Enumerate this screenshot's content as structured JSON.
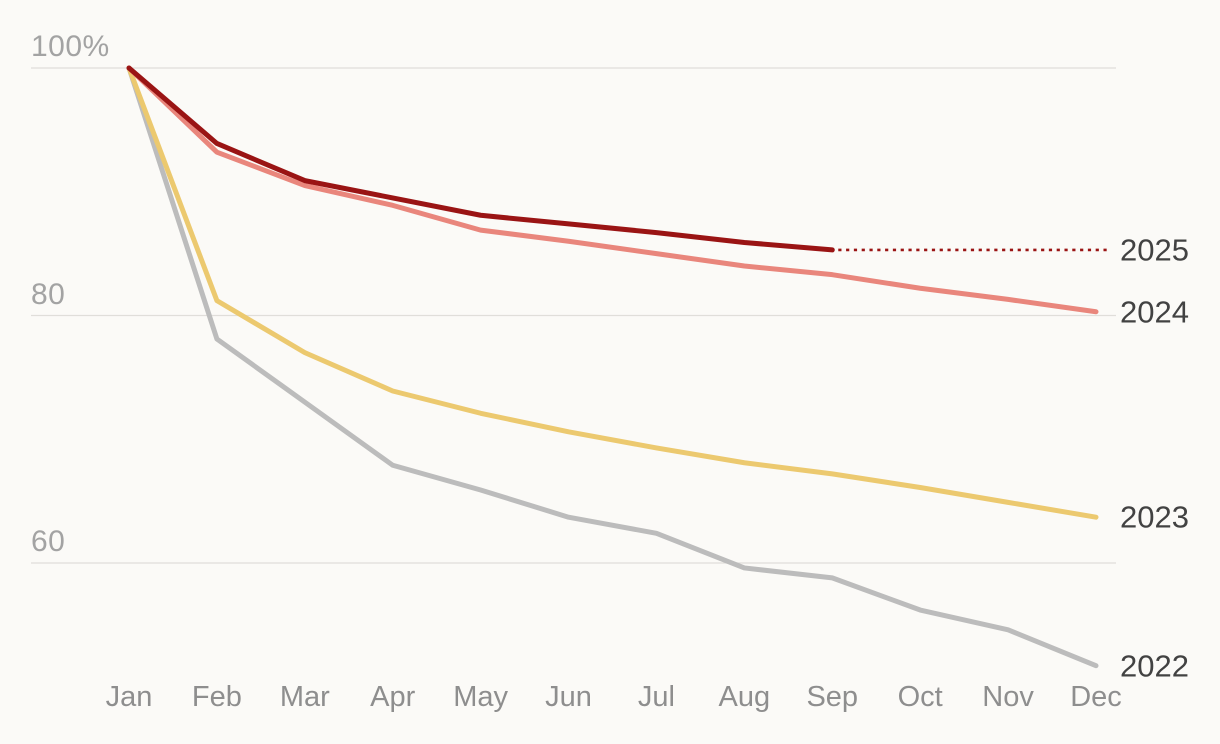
{
  "chart_data": {
    "type": "line",
    "title": "",
    "xlabel": "",
    "ylabel": "",
    "categories": [
      "Jan",
      "Feb",
      "Mar",
      "Apr",
      "May",
      "Jun",
      "Jul",
      "Aug",
      "Sep",
      "Oct",
      "Nov",
      "Dec"
    ],
    "y_axis": {
      "tick_labels": [
        "100%",
        "80",
        "60"
      ],
      "tick_values": [
        100,
        80,
        60
      ],
      "ylim": [
        45,
        100
      ],
      "unit": "%",
      "grid": true
    },
    "legend_position": "end-of-line-right",
    "series": [
      {
        "name": "2022",
        "color": "#bcbcbc",
        "line_style": "solid",
        "values": [
          100,
          78.1,
          73.0,
          67.9,
          65.9,
          63.7,
          62.4,
          59.6,
          58.8,
          56.2,
          54.6,
          51.7
        ]
      },
      {
        "name": "2023",
        "color": "#ecc96f",
        "line_style": "solid",
        "values": [
          100,
          81.2,
          77.0,
          73.9,
          72.1,
          70.6,
          69.3,
          68.1,
          67.2,
          66.1,
          64.9,
          63.7
        ]
      },
      {
        "name": "2024",
        "color": "#e9867c",
        "line_style": "solid",
        "values": [
          100,
          93.2,
          90.5,
          88.9,
          86.9,
          86.0,
          85.0,
          84.0,
          83.3,
          82.2,
          81.3,
          80.3
        ]
      },
      {
        "name": "2025",
        "color": "#9a1414",
        "line_style": "solid",
        "values": [
          100,
          93.9,
          90.9,
          89.5,
          88.1,
          87.4,
          86.7,
          85.9,
          85.3
        ],
        "projection": {
          "style": "dotted",
          "value": 85.3,
          "from": "Sep",
          "to": "Dec"
        }
      }
    ]
  },
  "colors": {
    "background": "#fbfaf7",
    "gridline": "#e0deda",
    "y_label": "#a3a3a3",
    "month_label": "#8e8e8e",
    "year_label": "#424242"
  }
}
